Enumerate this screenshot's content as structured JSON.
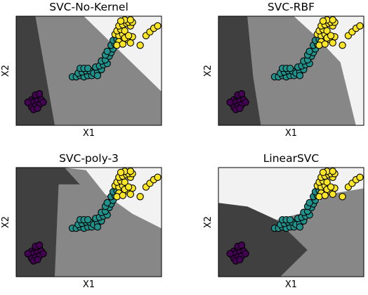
{
  "figure": {
    "background": "#ffffff"
  },
  "region_colors": [
    "#404040",
    "#878787",
    "#f2f2f2"
  ],
  "point_classes": [
    {
      "class": 0,
      "color": "#440154"
    },
    {
      "class": 1,
      "color": "#21918c"
    },
    {
      "class": 2,
      "color": "#fde725"
    }
  ],
  "points": [
    [
      -2.2,
      0.05,
      0
    ],
    [
      -2.0,
      0.1,
      0
    ],
    [
      -1.8,
      0.15,
      0
    ],
    [
      -2.3,
      -0.1,
      0
    ],
    [
      -2.1,
      -0.05,
      0
    ],
    [
      -1.9,
      0.0,
      0
    ],
    [
      -1.7,
      0.05,
      0
    ],
    [
      -2.2,
      -0.25,
      0
    ],
    [
      -2.0,
      -0.2,
      0
    ],
    [
      -1.8,
      -0.15,
      0
    ],
    [
      -2.4,
      -0.05,
      0
    ],
    [
      -1.6,
      -0.05,
      0
    ],
    [
      -2.0,
      0.25,
      0
    ],
    [
      -1.8,
      0.3,
      0
    ],
    [
      -2.1,
      -0.35,
      0
    ],
    [
      -1.9,
      -0.3,
      0
    ],
    [
      -0.1,
      1.0,
      1
    ],
    [
      0.1,
      1.0,
      1
    ],
    [
      0.3,
      1.05,
      1
    ],
    [
      0.5,
      1.0,
      1
    ],
    [
      0.7,
      1.05,
      1
    ],
    [
      0.9,
      1.05,
      1
    ],
    [
      0.2,
      1.15,
      1
    ],
    [
      0.4,
      1.2,
      1
    ],
    [
      0.6,
      1.25,
      1
    ],
    [
      0.3,
      1.35,
      1
    ],
    [
      0.5,
      1.35,
      1
    ],
    [
      0.8,
      1.25,
      1
    ],
    [
      1.0,
      1.15,
      1
    ],
    [
      1.2,
      1.2,
      1
    ],
    [
      1.4,
      1.3,
      1
    ],
    [
      1.1,
      1.4,
      1
    ],
    [
      1.3,
      1.45,
      1
    ],
    [
      1.5,
      1.5,
      1
    ],
    [
      1.7,
      1.55,
      1
    ],
    [
      1.4,
      1.65,
      1
    ],
    [
      1.6,
      1.7,
      1
    ],
    [
      1.8,
      1.85,
      1
    ],
    [
      1.6,
      1.9,
      1
    ],
    [
      1.9,
      2.0,
      1
    ],
    [
      1.7,
      2.05,
      1
    ],
    [
      2.0,
      2.15,
      1
    ],
    [
      1.9,
      2.3,
      1
    ],
    [
      2.1,
      2.35,
      1
    ],
    [
      2.0,
      2.5,
      1
    ],
    [
      2.2,
      2.55,
      1
    ],
    [
      1.2,
      1.05,
      1
    ],
    [
      0.7,
      1.35,
      1
    ],
    [
      2.1,
      2.75,
      2
    ],
    [
      2.3,
      2.7,
      2
    ],
    [
      2.5,
      2.75,
      2
    ],
    [
      2.2,
      2.9,
      2
    ],
    [
      2.4,
      2.95,
      2
    ],
    [
      2.6,
      2.9,
      2
    ],
    [
      2.3,
      3.1,
      2
    ],
    [
      2.5,
      3.15,
      2
    ],
    [
      2.7,
      3.2,
      2
    ],
    [
      2.9,
      3.1,
      2
    ],
    [
      2.8,
      3.25,
      2
    ],
    [
      3.0,
      3.25,
      2
    ],
    [
      2.6,
      3.35,
      2
    ],
    [
      2.9,
      3.35,
      2
    ],
    [
      2.4,
      3.3,
      2
    ],
    [
      2.3,
      2.45,
      2
    ],
    [
      2.7,
      2.55,
      2
    ],
    [
      2.2,
      2.3,
      2
    ],
    [
      2.9,
      2.4,
      2
    ],
    [
      2.5,
      2.35,
      2
    ],
    [
      3.0,
      2.65,
      2
    ],
    [
      2.6,
      2.6,
      2
    ],
    [
      3.7,
      2.7,
      2
    ],
    [
      3.9,
      2.85,
      2
    ],
    [
      4.1,
      3.0,
      2
    ],
    [
      4.3,
      3.1,
      2
    ],
    [
      3.4,
      2.3,
      2
    ],
    [
      2.8,
      2.7,
      2
    ]
  ],
  "chart_data": [
    {
      "type": "scatter",
      "title": "SVC-No-Kernel",
      "xlabel": "X1",
      "ylabel": "X2",
      "xlim": [
        -3.0,
        4.5
      ],
      "ylim": [
        -1.0,
        3.5
      ],
      "grid": false,
      "regions": [
        {
          "region_class": 0,
          "boundary": [
            [
              -3.0,
              3.5
            ],
            [
              -2.0,
              3.5
            ],
            [
              -1.0,
              -1.0
            ],
            [
              -3.0,
              -1.0
            ]
          ]
        },
        {
          "region_class": 1,
          "boundary": [
            [
              -2.0,
              3.5
            ],
            [
              0.5,
              3.5
            ],
            [
              4.5,
              0.4
            ],
            [
              4.5,
              -1.0
            ],
            [
              -1.0,
              -1.0
            ]
          ]
        },
        {
          "region_class": 2,
          "boundary": [
            [
              0.5,
              3.5
            ],
            [
              4.5,
              3.5
            ],
            [
              4.5,
              0.4
            ]
          ]
        }
      ]
    },
    {
      "type": "scatter",
      "title": "SVC-RBF",
      "xlabel": "X1",
      "ylabel": "X2",
      "xlim": [
        -3.0,
        4.5
      ],
      "ylim": [
        -1.0,
        3.5
      ],
      "grid": false,
      "regions": [
        {
          "region_class": 0,
          "boundary": [
            [
              -3.0,
              3.5
            ],
            [
              -1.5,
              3.5
            ],
            [
              -1.2,
              1.0
            ],
            [
              -0.8,
              -1.0
            ],
            [
              -3.0,
              -1.0
            ]
          ]
        },
        {
          "region_class": 1,
          "boundary": [
            [
              -1.5,
              3.5
            ],
            [
              0.9,
              3.5
            ],
            [
              2.0,
              2.7
            ],
            [
              3.3,
              1.6
            ],
            [
              4.1,
              -1.0
            ],
            [
              -0.8,
              -1.0
            ],
            [
              -1.2,
              1.0
            ]
          ]
        },
        {
          "region_class": 2,
          "boundary": [
            [
              0.9,
              3.5
            ],
            [
              4.5,
              3.5
            ],
            [
              4.5,
              -1.0
            ],
            [
              4.1,
              -1.0
            ],
            [
              3.3,
              1.6
            ],
            [
              2.0,
              2.7
            ]
          ]
        }
      ]
    },
    {
      "type": "scatter",
      "title": "SVC-poly-3",
      "xlabel": "X1",
      "ylabel": "X2",
      "xlim": [
        -3.0,
        4.5
      ],
      "ylim": [
        -1.0,
        3.5
      ],
      "grid": false,
      "regions": [
        {
          "region_class": 0,
          "boundary": [
            [
              -3.0,
              3.5
            ],
            [
              -0.5,
              3.5
            ],
            [
              0.3,
              2.8
            ],
            [
              -0.8,
              2.8
            ],
            [
              -1.0,
              -1.0
            ],
            [
              -3.0,
              -1.0
            ]
          ]
        },
        {
          "region_class": 1,
          "boundary": [
            [
              -0.5,
              3.5
            ],
            [
              0.3,
              2.8
            ],
            [
              -0.8,
              2.8
            ],
            [
              -1.0,
              -1.0
            ],
            [
              4.5,
              -1.0
            ],
            [
              4.5,
              1.0
            ],
            [
              3.0,
              1.6
            ],
            [
              1.6,
              2.4
            ],
            [
              0.6,
              3.4
            ]
          ]
        },
        {
          "region_class": 2,
          "boundary": [
            [
              -0.5,
              3.5
            ],
            [
              4.5,
              3.5
            ],
            [
              4.5,
              1.0
            ],
            [
              3.0,
              1.6
            ],
            [
              1.6,
              2.4
            ],
            [
              0.6,
              3.4
            ]
          ]
        }
      ]
    },
    {
      "type": "scatter",
      "title": "LinearSVC",
      "xlabel": "X1",
      "ylabel": "X2",
      "xlim": [
        -3.0,
        4.5
      ],
      "ylim": [
        -1.0,
        3.5
      ],
      "grid": false,
      "regions": [
        {
          "region_class": 0,
          "boundary": [
            [
              -3.0,
              2.05
            ],
            [
              -1.5,
              1.9
            ],
            [
              0.0,
              1.35
            ],
            [
              1.6,
              0.1
            ],
            [
              0.2,
              -1.0
            ],
            [
              -3.0,
              -1.0
            ]
          ]
        },
        {
          "region_class": 1,
          "boundary": [
            [
              0.0,
              1.35
            ],
            [
              1.6,
              1.7
            ],
            [
              2.6,
              2.4
            ],
            [
              4.5,
              2.65
            ],
            [
              4.5,
              -1.0
            ],
            [
              0.2,
              -1.0
            ],
            [
              1.6,
              0.1
            ]
          ]
        },
        {
          "region_class": 2,
          "boundary": [
            [
              -3.0,
              3.5
            ],
            [
              4.5,
              3.5
            ],
            [
              4.5,
              2.65
            ],
            [
              2.6,
              2.4
            ],
            [
              1.6,
              1.7
            ],
            [
              0.0,
              1.35
            ],
            [
              -1.5,
              1.9
            ],
            [
              -3.0,
              2.05
            ]
          ]
        }
      ]
    }
  ]
}
